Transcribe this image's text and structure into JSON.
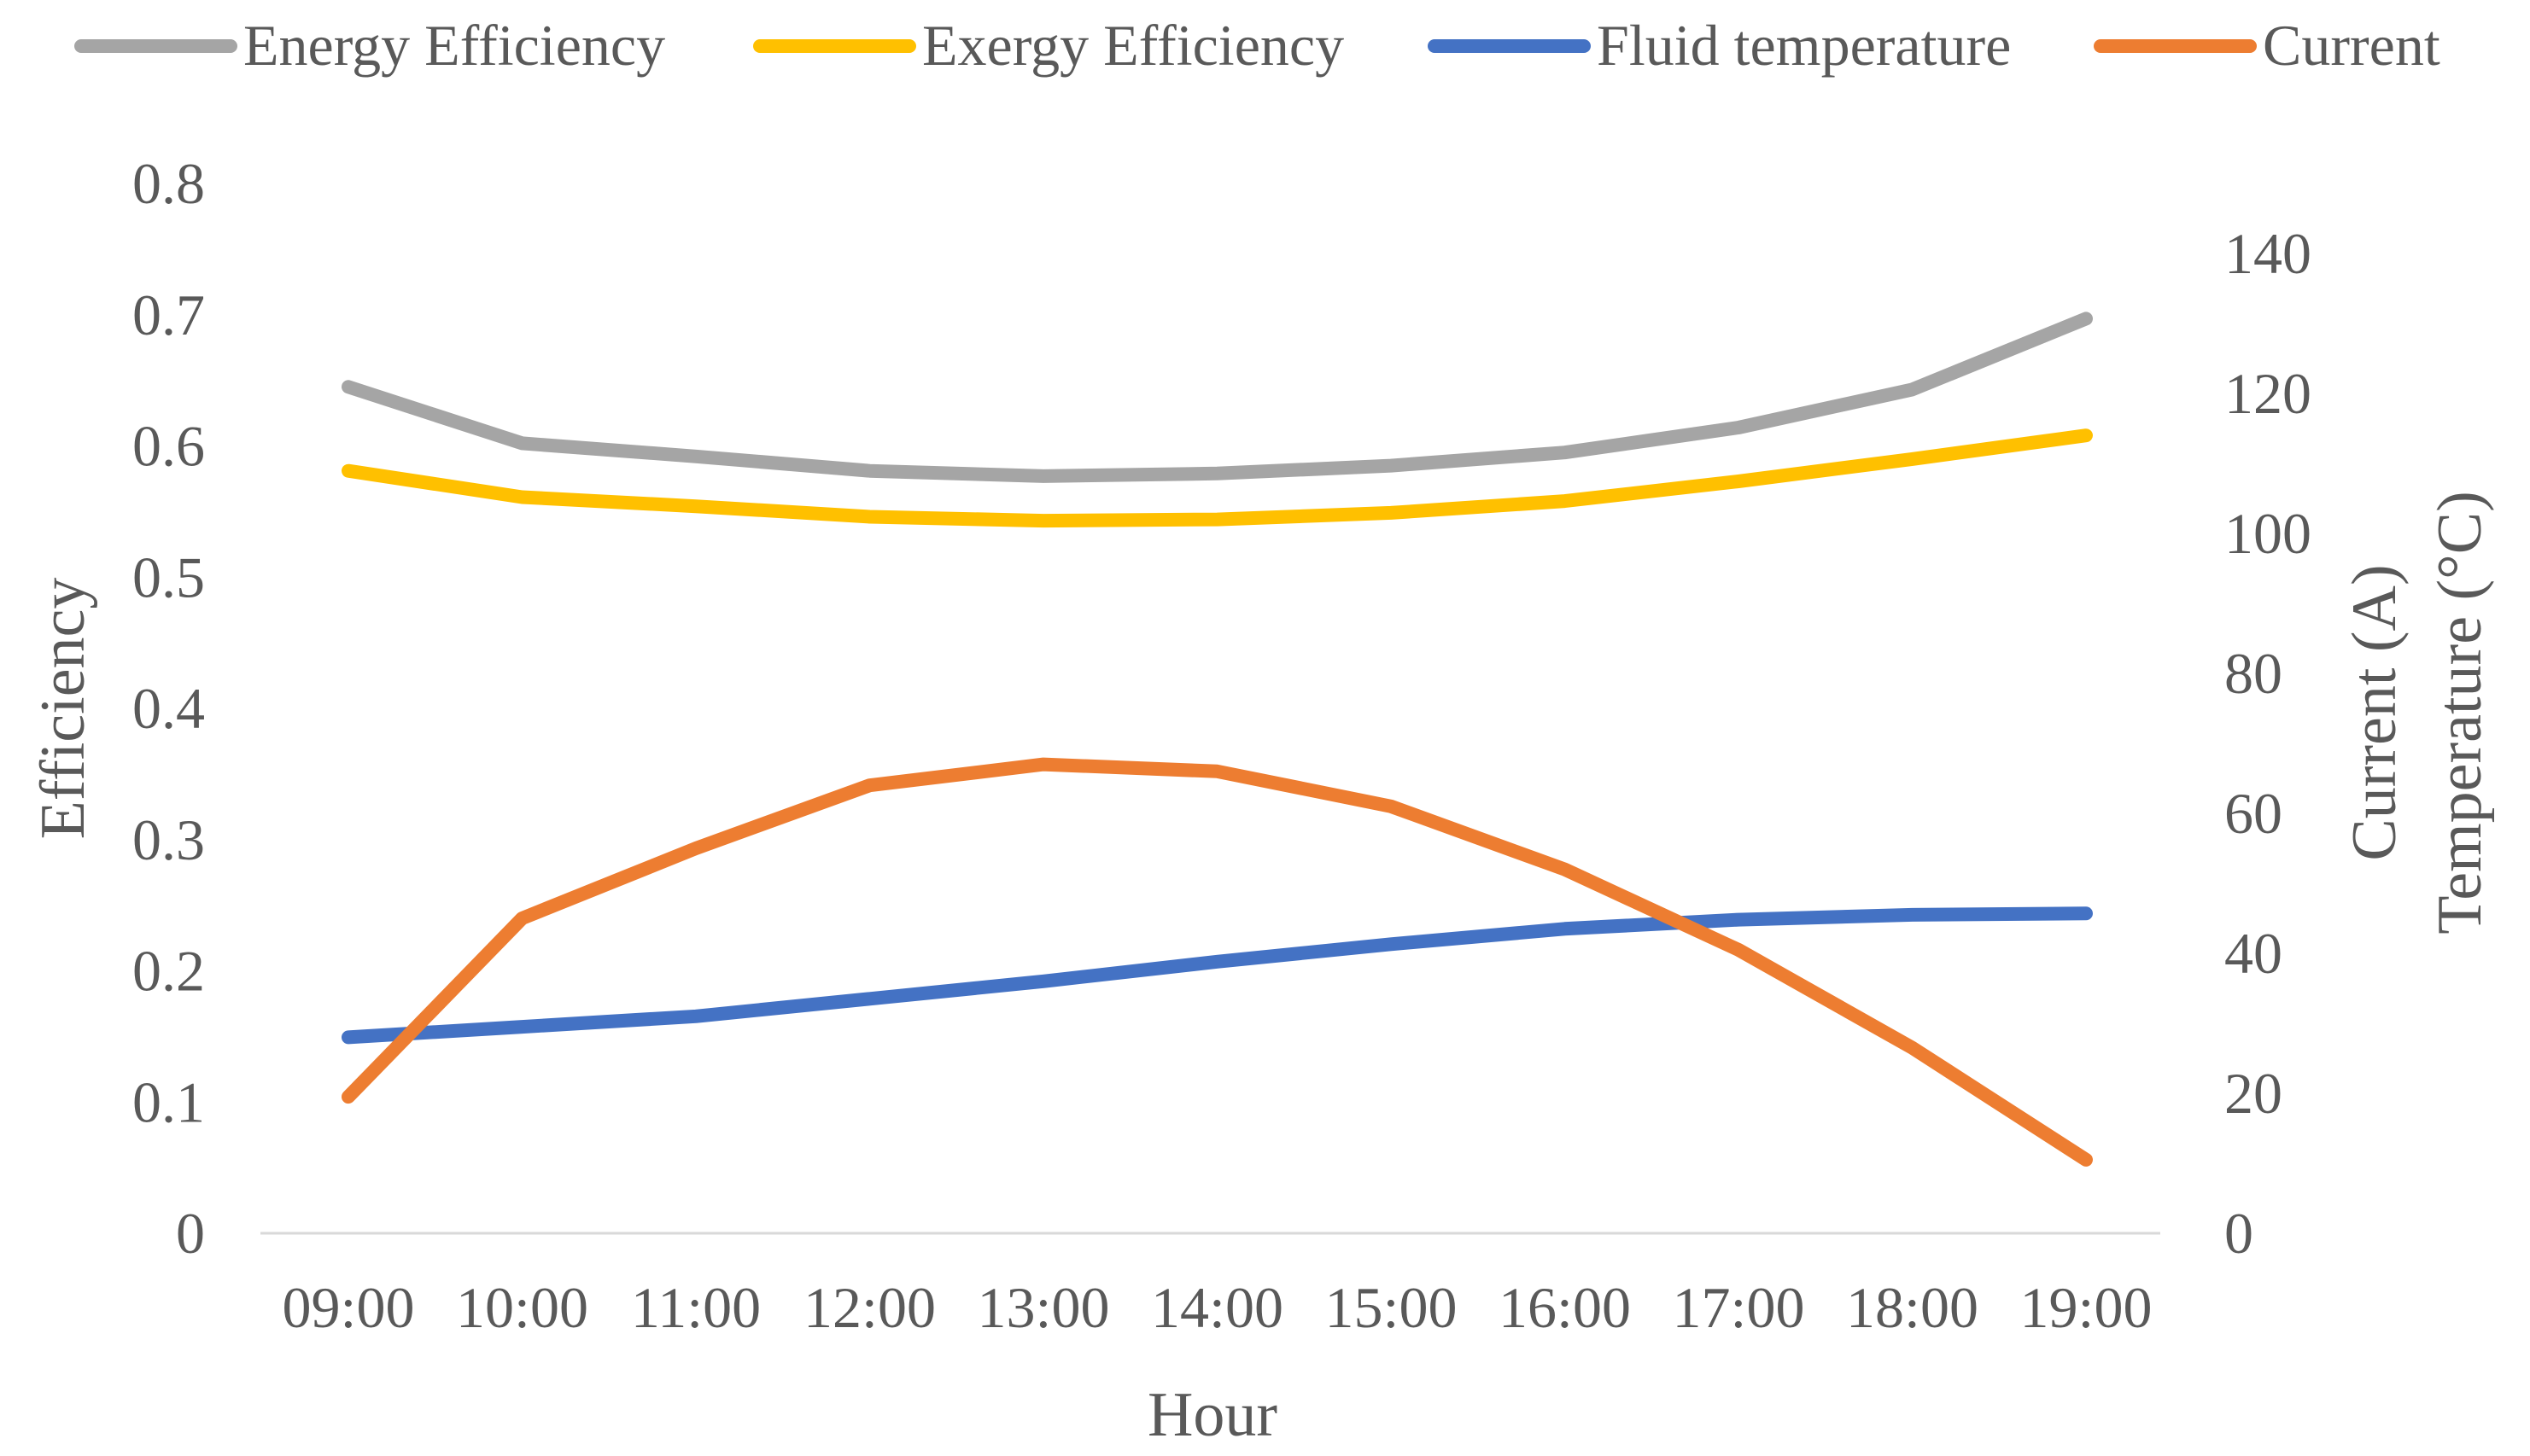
{
  "chart_data": {
    "type": "line",
    "categories": [
      "09:00",
      "10:00",
      "11:00",
      "12:00",
      "13:00",
      "14:00",
      "15:00",
      "16:00",
      "17:00",
      "18:00",
      "19:00"
    ],
    "xlabel": "Hour",
    "ylabel_left": "Efficiency",
    "ylabel_right": [
      "Current (A)",
      "Temperature (°C)"
    ],
    "y_left": {
      "ticks": [
        "0",
        "0.1",
        "0.2",
        "0.3",
        "0.4",
        "0.5",
        "0.6",
        "0.7",
        "0.8"
      ],
      "range": [
        0,
        0.8
      ]
    },
    "y_right": {
      "ticks": [
        "0",
        "20",
        "40",
        "60",
        "80",
        "100",
        "120",
        "140"
      ],
      "range": [
        0,
        140
      ]
    },
    "grid": false,
    "legend_position": "top",
    "series": [
      {
        "name": "Energy Efficiency",
        "axis": "left",
        "color": "#A5A5A5",
        "values": [
          0.645,
          0.602,
          0.592,
          0.581,
          0.577,
          0.579,
          0.585,
          0.595,
          0.614,
          0.643,
          0.697
        ]
      },
      {
        "name": "Exergy Efficiency",
        "axis": "left",
        "color": "#FFC000",
        "values": [
          0.581,
          0.561,
          0.554,
          0.546,
          0.543,
          0.544,
          0.549,
          0.558,
          0.573,
          0.59,
          0.608
        ]
      },
      {
        "name": "Fluid temperature",
        "axis": "right",
        "color": "#4472C4",
        "values": [
          28,
          29.5,
          31,
          33.5,
          36,
          38.8,
          41.3,
          43.5,
          44.8,
          45.5,
          45.7
        ]
      },
      {
        "name": "Current",
        "axis": "right",
        "color": "#ED7D31",
        "values": [
          19.5,
          45,
          55,
          64,
          67,
          66,
          61,
          52,
          40.5,
          26.5,
          10.5
        ]
      }
    ]
  }
}
